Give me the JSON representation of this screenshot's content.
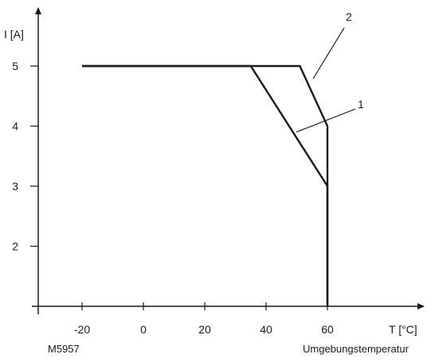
{
  "chart_data": {
    "type": "line",
    "title": "",
    "xlabel": "T [°C]",
    "ylabel": "I [A]",
    "xlim": [
      -35,
      85
    ],
    "ylim": [
      1,
      6
    ],
    "x_ticks": [
      -20,
      0,
      20,
      40,
      60
    ],
    "x_tick_labels": [
      "-20",
      "0",
      "20",
      "40",
      "60"
    ],
    "y_ticks": [
      2,
      3,
      4,
      5
    ],
    "y_tick_labels": [
      "2",
      "3",
      "4",
      "5"
    ],
    "series": [
      {
        "name": "1",
        "x": [
          -20,
          35,
          60,
          60
        ],
        "y": [
          5,
          5,
          3,
          1
        ]
      },
      {
        "name": "2",
        "x": [
          -20,
          51,
          60,
          60
        ],
        "y": [
          5,
          5,
          4,
          1
        ]
      }
    ],
    "annotations": {
      "code": "M5957",
      "caption": "Umgebungstemperatur"
    },
    "grid": false,
    "line_color": "#1a1a1a"
  }
}
